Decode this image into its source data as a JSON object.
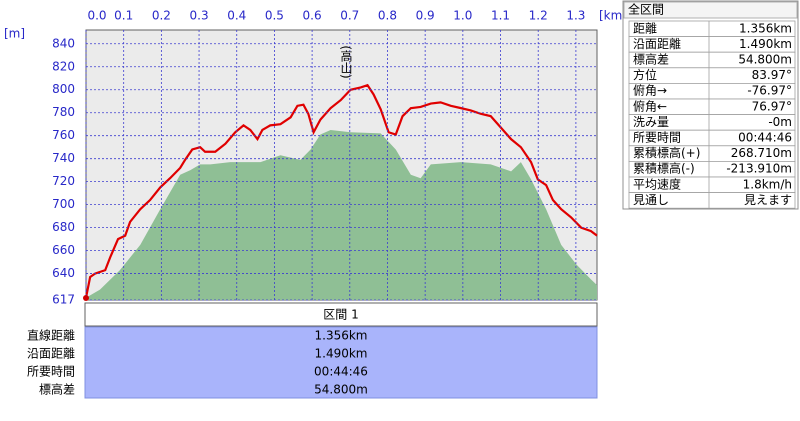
{
  "chart_data": {
    "type": "line",
    "annotation": "(高山)",
    "x_label": "[km]",
    "y_label": "[m]",
    "xlim": [
      0,
      1.356
    ],
    "ylim": [
      617,
      852
    ],
    "xticks": [
      {
        "value": 0,
        "label": "0.0"
      },
      0.1,
      0.2,
      0.3,
      0.4,
      0.5,
      0.6,
      0.7,
      0.8,
      0.9,
      {
        "value": 1,
        "label": "1.0"
      },
      1.1,
      1.2,
      1.3
    ],
    "yticks": [
      617,
      640,
      660,
      680,
      700,
      720,
      740,
      760,
      780,
      800,
      820,
      840
    ],
    "grid": true,
    "series": [
      {
        "color": "#8fbf95",
        "fill": true,
        "x": [
          0,
          0.037,
          0.09,
          0.144,
          0.197,
          0.25,
          0.277,
          0.303,
          0.33,
          0.383,
          0.463,
          0.516,
          0.569,
          0.596,
          0.622,
          0.649,
          0.702,
          0.782,
          0.822,
          0.862,
          0.888,
          0.915,
          0.995,
          1.074,
          1.128,
          1.154,
          1.181,
          1.221,
          1.261,
          1.301,
          1.34,
          1.356
        ],
        "values": [
          619,
          626,
          643,
          665,
          696,
          726,
          730,
          735,
          735,
          737,
          737,
          743,
          739,
          748,
          761,
          765,
          763,
          762,
          748,
          726,
          723,
          735,
          737,
          735,
          729,
          737,
          722,
          696,
          665,
          648,
          635,
          630
        ]
      },
      {
        "color": "#e00000",
        "fill": false,
        "x": [
          0,
          0.011,
          0.024,
          0.051,
          0.064,
          0.085,
          0.104,
          0.117,
          0.144,
          0.17,
          0.197,
          0.223,
          0.25,
          0.263,
          0.282,
          0.303,
          0.316,
          0.343,
          0.37,
          0.396,
          0.418,
          0.436,
          0.455,
          0.468,
          0.489,
          0.516,
          0.543,
          0.561,
          0.577,
          0.59,
          0.604,
          0.622,
          0.649,
          0.676,
          0.702,
          0.729,
          0.747,
          0.763,
          0.782,
          0.803,
          0.822,
          0.84,
          0.862,
          0.888,
          0.915,
          0.941,
          0.968,
          0.995,
          1.021,
          1.048,
          1.074,
          1.101,
          1.128,
          1.154,
          1.181,
          1.199,
          1.221,
          1.239,
          1.261,
          1.287,
          1.314,
          1.34,
          1.356
        ],
        "values": [
          619,
          637,
          640,
          643,
          654,
          670,
          673,
          685,
          696,
          704,
          715,
          723,
          732,
          739,
          748,
          750,
          746,
          746,
          753,
          763,
          769,
          765,
          757,
          765,
          769,
          770,
          776,
          786,
          787,
          779,
          763,
          774,
          784,
          791,
          800,
          802,
          804,
          796,
          783,
          763,
          761,
          777,
          784,
          785,
          788,
          789,
          786,
          784,
          782,
          779,
          777,
          767,
          757,
          750,
          737,
          722,
          717,
          704,
          696,
          689,
          680,
          677,
          673
        ]
      }
    ]
  },
  "summary": {
    "title": "全区間",
    "rows": [
      [
        "距離",
        "1.356km"
      ],
      [
        "沿面距離",
        "1.490km"
      ],
      [
        "標高差",
        "54.800m"
      ],
      [
        "方位",
        "83.97°"
      ],
      [
        "俯角→",
        "-76.97°"
      ],
      [
        "俯角←",
        "76.97°"
      ],
      [
        "洗み量",
        "-0m"
      ],
      [
        "所要時間",
        "00:44:46"
      ],
      [
        "累積標高(+)",
        "268.710m"
      ],
      [
        "累積標高(-)",
        "-213.910m"
      ],
      [
        "平均速度",
        "1.8km/h"
      ],
      [
        "見通し",
        "見えます"
      ]
    ]
  },
  "section": {
    "title": "区間 1",
    "rows": [
      [
        "直線距離",
        "1.356km"
      ],
      [
        "沿面距離",
        "1.490km"
      ],
      [
        "所要時間",
        "00:44:46"
      ],
      [
        "標高差",
        "54.800m"
      ]
    ]
  }
}
